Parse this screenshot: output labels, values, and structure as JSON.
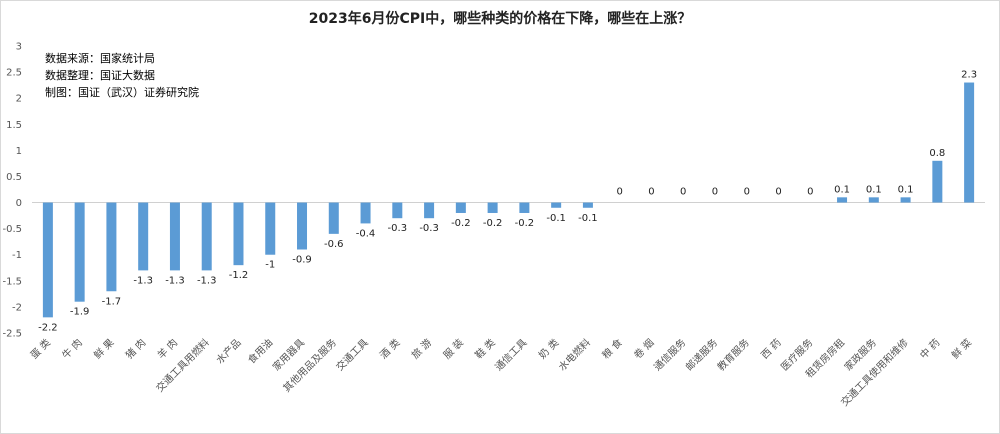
{
  "chart_data": {
    "type": "bar",
    "title": "2023年6月份CPI中，哪些种类的价格在下降，哪些在上涨？",
    "notes": [
      "数据来源：国家统计局",
      "数据整理：国证大数据",
      "制图：国证（武汉）证券研究院"
    ],
    "categories": [
      "蛋 类",
      "牛 肉",
      "鲜 果",
      "猪 肉",
      "羊 肉",
      "交通工具用燃料",
      "水产品",
      "食用油",
      "家用器具",
      "其他用品及服务",
      "交通工具",
      "酒 类",
      "旅 游",
      "服 装",
      "鞋 类",
      "通信工具",
      "奶 类",
      "水电燃料",
      "粮 食",
      "卷 烟",
      "通信服务",
      "邮递服务",
      "教育服务",
      "西 药",
      "医疗服务",
      "租赁房房租",
      "家政服务",
      "交通工具使用和维修",
      "中 药",
      "鲜 菜"
    ],
    "values": [
      -2.2,
      -1.9,
      -1.7,
      -1.3,
      -1.3,
      -1.3,
      -1.2,
      -1,
      -0.9,
      -0.6,
      -0.4,
      -0.3,
      -0.3,
      -0.2,
      -0.2,
      -0.2,
      -0.1,
      -0.1,
      0,
      0,
      0,
      0,
      0,
      0,
      0,
      0.1,
      0.1,
      0.1,
      0.8,
      2.3
    ],
    "value_labels": [
      "-2.2",
      "-1.9",
      "-1.7",
      "-1.3",
      "-1.3",
      "-1.3",
      "-1.2",
      "-1",
      "-0.9",
      "-0.6",
      "-0.4",
      "-0.3",
      "-0.3",
      "-0.2",
      "-0.2",
      "-0.2",
      "-0.1",
      "-0.1",
      "0",
      "0",
      "0",
      "0",
      "0",
      "0",
      "0",
      "0.1",
      "0.1",
      "0.1",
      "0.8",
      "2.3"
    ],
    "yticks": [
      "-2.5",
      "-2",
      "-1.5",
      "-1",
      "-0.5",
      "0",
      "0.5",
      "1",
      "1.5",
      "2",
      "2.5",
      "3"
    ],
    "ylim": [
      -2.5,
      3
    ],
    "grid": false,
    "bar_color": "#5b9bd5"
  }
}
